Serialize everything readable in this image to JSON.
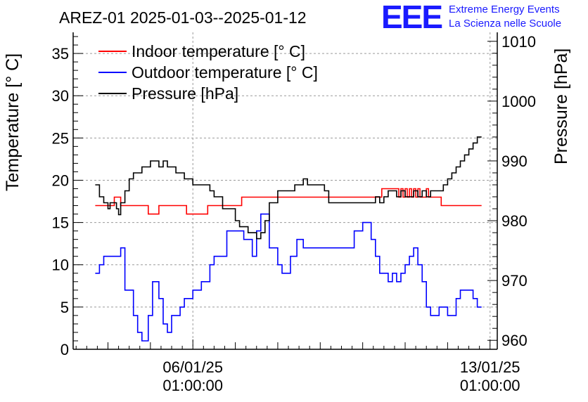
{
  "title": "AREZ-01 2025-01-03--2025-01-12",
  "logo": {
    "letters": "EEE",
    "line1": "Extreme Energy Events",
    "line2": "La Scienza nelle Scuole",
    "color": "#1a1aff"
  },
  "chart_data": {
    "type": "line",
    "title": "AREZ-01 2025-01-03--2025-01-12",
    "ylabel": "Temperature [° C]",
    "y2label": "Pressure [hPa]",
    "ylim": [
      0,
      37.5
    ],
    "y2lim": [
      958.5,
      1011.5
    ],
    "xlim": [
      -2.82,
      7.17
    ],
    "x_unit": "days relative to 06/01/25 01:00:00",
    "x_ticks": [
      {
        "value": 0,
        "date": "06/01/25",
        "time": "01:00:00"
      },
      {
        "value": 7,
        "date": "13/01/25",
        "time": "01:00:00"
      }
    ],
    "y_ticks": [
      0,
      5,
      10,
      15,
      20,
      25,
      30,
      35
    ],
    "y2_ticks": [
      960,
      970,
      980,
      990,
      1000,
      1010
    ],
    "grid": true,
    "legend_position": "top-left",
    "series": [
      {
        "name": "Indoor temperature [° C]",
        "axis": "left",
        "color": "#ff0000",
        "x": [
          -2.3,
          -1.9,
          -1.85,
          -1.75,
          -1.7,
          -1.3,
          -1.25,
          -1.1,
          -1.05,
          -0.85,
          -0.8,
          -0.2,
          -0.15,
          0.3,
          0.35,
          0.5,
          0.55,
          1.1,
          1.15,
          1.8,
          1.85,
          2.5,
          2.55,
          4.4,
          4.45,
          4.8,
          4.85,
          4.9,
          4.95,
          5.0,
          5.05,
          5.1,
          5.15,
          5.2,
          5.25,
          5.3,
          5.35,
          5.45,
          5.5,
          5.55,
          5.6,
          5.65,
          5.7,
          5.8,
          5.85,
          6.8
        ],
        "values": [
          17,
          17,
          18,
          18,
          17,
          17,
          17,
          17,
          16,
          16,
          17,
          17,
          16,
          16,
          17,
          17,
          17,
          17,
          18,
          18,
          18,
          18,
          18,
          18,
          19,
          19,
          18,
          19,
          18,
          19,
          18,
          19,
          18,
          19,
          18,
          19,
          18,
          18,
          19,
          18,
          18,
          18,
          18,
          18,
          17,
          17
        ]
      },
      {
        "name": "Outdoor temperature [° C]",
        "axis": "left",
        "color": "#0000ff",
        "x": [
          -2.3,
          -2.2,
          -2.1,
          -1.9,
          -1.8,
          -1.75,
          -1.7,
          -1.6,
          -1.4,
          -1.3,
          -1.2,
          -1.15,
          -1.05,
          -0.95,
          -0.9,
          -0.8,
          -0.7,
          -0.6,
          -0.5,
          -0.4,
          -0.3,
          -0.2,
          -0.1,
          0.0,
          0.2,
          0.4,
          0.5,
          0.6,
          0.8,
          1.2,
          1.4,
          1.5,
          1.6,
          1.8,
          2.0,
          2.1,
          2.3,
          2.45,
          2.6,
          3.0,
          3.8,
          4.0,
          4.2,
          4.3,
          4.4,
          4.5,
          4.6,
          4.7,
          4.8,
          4.9,
          5.0,
          5.1,
          5.2,
          5.3,
          5.4,
          5.5,
          5.6,
          5.7,
          5.8,
          6.0,
          6.2,
          6.3,
          6.5,
          6.6,
          6.7,
          6.8
        ],
        "values": [
          9,
          10,
          11,
          11,
          11,
          11,
          12,
          7,
          4,
          2,
          1,
          1,
          4,
          8,
          8,
          6,
          3,
          2,
          4,
          4,
          5,
          6,
          6,
          7,
          8,
          10,
          11,
          11,
          14,
          13,
          11,
          14,
          16,
          12,
          10,
          9,
          11,
          13,
          12,
          12,
          14,
          15,
          13,
          11,
          9,
          9,
          8,
          9,
          8,
          9,
          10,
          11,
          12,
          10,
          8,
          5,
          4,
          4,
          5,
          4,
          6,
          7,
          7,
          6,
          5,
          5
        ]
      },
      {
        "name": "Pressure [hPa]",
        "axis": "right",
        "color": "#000000",
        "x": [
          -2.3,
          -2.2,
          -2.1,
          -2.0,
          -1.95,
          -1.9,
          -1.8,
          -1.75,
          -1.7,
          -1.6,
          -1.5,
          -1.4,
          -1.3,
          -1.2,
          -1.1,
          -1.0,
          -0.9,
          -0.8,
          -0.7,
          -0.6,
          -0.5,
          -0.4,
          -0.3,
          -0.2,
          0.0,
          0.3,
          0.4,
          0.5,
          0.6,
          0.7,
          1.0,
          1.1,
          1.3,
          1.5,
          1.6,
          1.7,
          1.8,
          2.0,
          2.2,
          2.4,
          2.5,
          2.6,
          2.7,
          2.9,
          3.0,
          3.1,
          3.2,
          4.3,
          4.4,
          4.5,
          4.6,
          4.7,
          4.8,
          4.9,
          5.0,
          5.1,
          5.2,
          5.3,
          5.4,
          5.5,
          5.6,
          5.7,
          5.8,
          5.9,
          6.0,
          6.1,
          6.2,
          6.3,
          6.4,
          6.5,
          6.6,
          6.7,
          6.8
        ],
        "values": [
          986,
          984,
          983,
          982,
          983,
          983,
          982,
          981,
          983,
          985,
          987,
          988,
          988,
          989,
          989,
          990,
          990,
          989,
          990,
          989,
          989,
          988,
          988,
          987,
          986,
          986,
          985,
          984,
          984,
          982,
          980,
          979,
          978,
          977,
          978,
          980,
          983,
          985,
          985,
          986,
          986,
          987,
          986,
          986,
          986,
          985,
          983,
          984,
          983,
          984,
          985,
          985,
          984,
          985,
          984,
          984,
          985,
          984,
          985,
          984,
          985,
          985,
          985,
          986,
          987,
          988,
          989,
          990,
          991,
          992,
          993,
          994,
          994
        ]
      }
    ]
  }
}
